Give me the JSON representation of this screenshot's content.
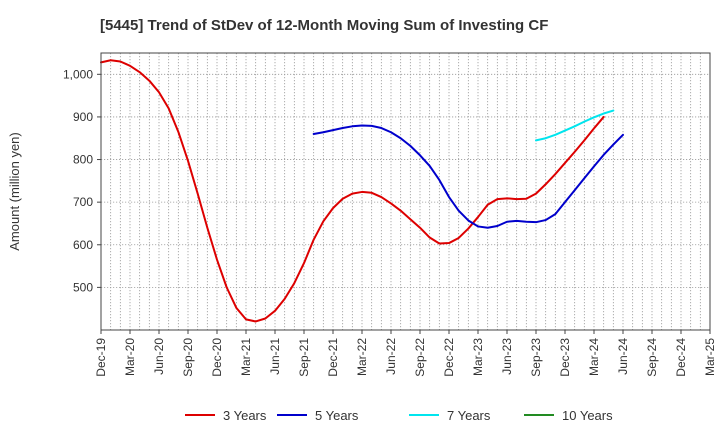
{
  "chart_data": {
    "type": "line",
    "title": "[5445]  Trend of StDev of 12-Month Moving Sum of Investing CF",
    "xlabel": "",
    "ylabel": "Amount (million yen)",
    "ylim": [
      400,
      1050
    ],
    "yticks": [
      500,
      600,
      700,
      800,
      900,
      1000
    ],
    "ytick_labels": [
      "500",
      "600",
      "700",
      "800",
      "900",
      "1,000"
    ],
    "x_tick_labels": [
      "Dec-19",
      "Mar-20",
      "Jun-20",
      "Sep-20",
      "Dec-20",
      "Mar-21",
      "Jun-21",
      "Sep-21",
      "Dec-21",
      "Mar-22",
      "Jun-22",
      "Sep-22",
      "Dec-22",
      "Mar-23",
      "Jun-23",
      "Sep-23",
      "Dec-23",
      "Mar-24",
      "Jun-24",
      "Sep-24",
      "Dec-24",
      "Mar-25"
    ],
    "x_months": [
      "2019-12",
      "2020-01",
      "2020-02",
      "2020-03",
      "2020-04",
      "2020-05",
      "2020-06",
      "2020-07",
      "2020-08",
      "2020-09",
      "2020-10",
      "2020-11",
      "2020-12",
      "2021-01",
      "2021-02",
      "2021-03",
      "2021-04",
      "2021-05",
      "2021-06",
      "2021-07",
      "2021-08",
      "2021-09",
      "2021-10",
      "2021-11",
      "2021-12",
      "2022-01",
      "2022-02",
      "2022-03",
      "2022-04",
      "2022-05",
      "2022-06",
      "2022-07",
      "2022-08",
      "2022-09",
      "2022-10",
      "2022-11",
      "2022-12",
      "2023-01",
      "2023-02",
      "2023-03",
      "2023-04",
      "2023-05",
      "2023-06",
      "2023-07",
      "2023-08",
      "2023-09",
      "2023-10",
      "2023-11",
      "2023-12",
      "2024-01",
      "2024-02",
      "2024-03",
      "2024-04",
      "2024-05",
      "2024-06",
      "2024-07",
      "2024-08",
      "2024-09",
      "2024-10",
      "2024-11",
      "2024-12",
      "2025-01",
      "2025-02",
      "2025-03"
    ],
    "grid": true,
    "legend_position": "bottom",
    "series": [
      {
        "name": "3 Years",
        "color": "#dd0000",
        "values": [
          1028,
          1033,
          1030,
          1020,
          1005,
          985,
          958,
          920,
          865,
          797,
          720,
          640,
          565,
          500,
          452,
          425,
          420,
          427,
          445,
          473,
          510,
          557,
          612,
          655,
          686,
          708,
          720,
          724,
          722,
          712,
          697,
          680,
          660,
          640,
          617,
          603,
          604,
          616,
          638,
          665,
          694,
          707,
          709,
          707,
          708,
          720,
          742,
          766,
          792,
          818,
          845,
          873,
          900,
          null,
          null,
          null,
          null,
          null,
          null,
          null,
          null,
          null,
          null,
          null
        ]
      },
      {
        "name": "5 Years",
        "color": "#0000cc",
        "values": [
          null,
          null,
          null,
          null,
          null,
          null,
          null,
          null,
          null,
          null,
          null,
          null,
          null,
          null,
          null,
          null,
          null,
          null,
          null,
          null,
          null,
          null,
          860,
          864,
          869,
          874,
          878,
          880,
          879,
          874,
          864,
          850,
          832,
          810,
          785,
          752,
          712,
          680,
          657,
          643,
          640,
          644,
          654,
          656,
          654,
          653,
          658,
          672,
          700,
          728,
          756,
          784,
          811,
          835,
          858,
          null,
          null,
          null,
          null,
          null,
          null,
          null,
          null,
          null
        ]
      },
      {
        "name": "7 Years",
        "color": "#00e5ee",
        "values": [
          null,
          null,
          null,
          null,
          null,
          null,
          null,
          null,
          null,
          null,
          null,
          null,
          null,
          null,
          null,
          null,
          null,
          null,
          null,
          null,
          null,
          null,
          null,
          null,
          null,
          null,
          null,
          null,
          null,
          null,
          null,
          null,
          null,
          null,
          null,
          null,
          null,
          null,
          null,
          null,
          null,
          null,
          null,
          null,
          null,
          845,
          850,
          858,
          868,
          878,
          889,
          899,
          908,
          915,
          null,
          null,
          null,
          null,
          null,
          null,
          null,
          null,
          null,
          null
        ]
      },
      {
        "name": "10 Years",
        "color": "#228b22",
        "values": []
      }
    ]
  }
}
